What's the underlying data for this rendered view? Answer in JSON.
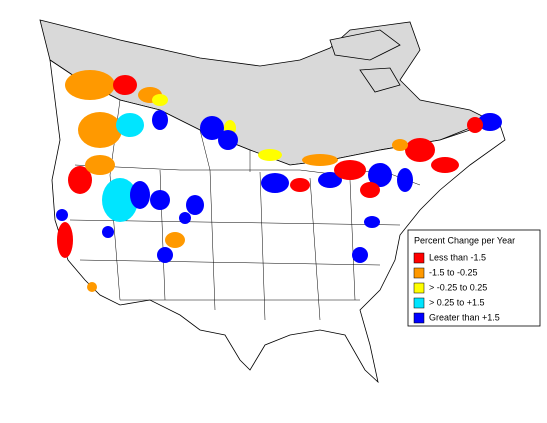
{
  "legend": {
    "title": "Percent Change per Year",
    "items": [
      {
        "label": "Less than -1.5",
        "color": "#ff0000"
      },
      {
        "label": "-1.5 to -0.25",
        "color": "#ff9900"
      },
      {
        "label": "> -0.25 to 0.25",
        "color": "#ffff00"
      },
      {
        "label": "> 0.25 to +1.5",
        "color": "#00e5ff"
      },
      {
        "label": "Greater than +1.5",
        "color": "#0000ff"
      }
    ]
  }
}
